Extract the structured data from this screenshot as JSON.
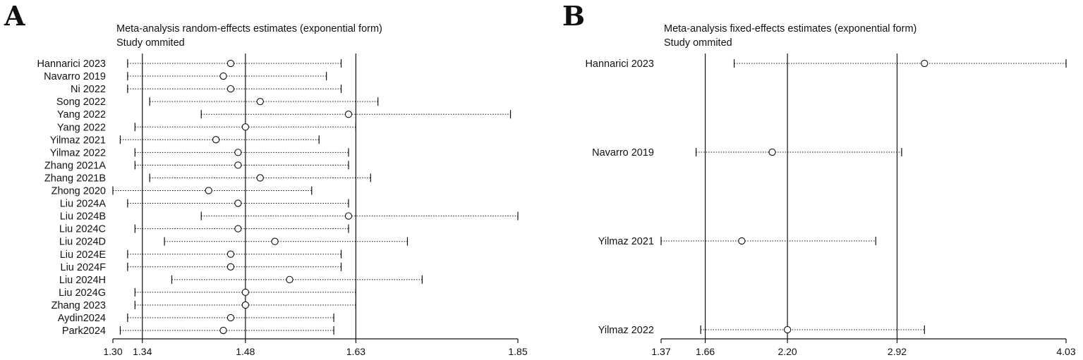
{
  "chart_data": [
    {
      "type": "forest",
      "panel_label": "A",
      "title": "Meta-analysis random-effects estimates (exponential form)",
      "subtitle": "Study ommited",
      "xlim": [
        1.3,
        1.85
      ],
      "x_ticks": [
        "1.30",
        "1.34",
        "1.48",
        "1.63",
        "1.85"
      ],
      "reference_lines": [
        1.34,
        1.48,
        1.63
      ],
      "studies": [
        {
          "label": "Hannarici 2023",
          "estimate": 1.46,
          "lower": 1.32,
          "upper": 1.61
        },
        {
          "label": "Navarro 2019",
          "estimate": 1.45,
          "lower": 1.32,
          "upper": 1.59
        },
        {
          "label": "Ni 2022",
          "estimate": 1.46,
          "lower": 1.32,
          "upper": 1.61
        },
        {
          "label": "Song 2022",
          "estimate": 1.5,
          "lower": 1.35,
          "upper": 1.66
        },
        {
          "label": "Yang 2022",
          "estimate": 1.62,
          "lower": 1.42,
          "upper": 1.84
        },
        {
          "label": "Yang 2022",
          "estimate": 1.48,
          "lower": 1.33,
          "upper": 1.63
        },
        {
          "label": "Yilmaz 2021",
          "estimate": 1.44,
          "lower": 1.31,
          "upper": 1.58
        },
        {
          "label": "Yilmaz 2022",
          "estimate": 1.47,
          "lower": 1.33,
          "upper": 1.62
        },
        {
          "label": "Zhang 2021A",
          "estimate": 1.47,
          "lower": 1.33,
          "upper": 1.62
        },
        {
          "label": "Zhang 2021B",
          "estimate": 1.5,
          "lower": 1.35,
          "upper": 1.65
        },
        {
          "label": "Zhong 2020",
          "estimate": 1.43,
          "lower": 1.3,
          "upper": 1.57
        },
        {
          "label": "Liu 2024A",
          "estimate": 1.47,
          "lower": 1.32,
          "upper": 1.62
        },
        {
          "label": "Liu 2024B",
          "estimate": 1.62,
          "lower": 1.42,
          "upper": 1.85
        },
        {
          "label": "Liu 2024C",
          "estimate": 1.47,
          "lower": 1.33,
          "upper": 1.62
        },
        {
          "label": "Liu 2024D",
          "estimate": 1.52,
          "lower": 1.37,
          "upper": 1.7
        },
        {
          "label": "Liu 2024E",
          "estimate": 1.46,
          "lower": 1.32,
          "upper": 1.61
        },
        {
          "label": "Liu 2024F",
          "estimate": 1.46,
          "lower": 1.32,
          "upper": 1.61
        },
        {
          "label": "Liu 2024H",
          "estimate": 1.54,
          "lower": 1.38,
          "upper": 1.72
        },
        {
          "label": "Liu 2024G",
          "estimate": 1.48,
          "lower": 1.33,
          "upper": 1.63
        },
        {
          "label": "Zhang 2023",
          "estimate": 1.48,
          "lower": 1.33,
          "upper": 1.63
        },
        {
          "label": "Aydin2024",
          "estimate": 1.46,
          "lower": 1.32,
          "upper": 1.6
        },
        {
          "label": "Park2024",
          "estimate": 1.45,
          "lower": 1.31,
          "upper": 1.6
        }
      ]
    },
    {
      "type": "forest",
      "panel_label": "B",
      "title": "Meta-analysis fixed-effects estimates (exponential form)",
      "subtitle": "Study ommited",
      "xlim": [
        1.37,
        4.03
      ],
      "x_ticks": [
        "1.37",
        "1.66",
        "2.20",
        "2.92",
        "4.03"
      ],
      "reference_lines": [
        1.66,
        2.2,
        2.92
      ],
      "studies": [
        {
          "label": "Hannarici 2023",
          "estimate": 3.1,
          "lower": 1.85,
          "upper": 4.03
        },
        {
          "label": "Navarro 2019",
          "estimate": 2.1,
          "lower": 1.6,
          "upper": 2.95
        },
        {
          "label": "Yilmaz 2021",
          "estimate": 1.9,
          "lower": 1.37,
          "upper": 2.78
        },
        {
          "label": "Yilmaz 2022",
          "estimate": 2.2,
          "lower": 1.63,
          "upper": 3.1
        }
      ]
    }
  ]
}
